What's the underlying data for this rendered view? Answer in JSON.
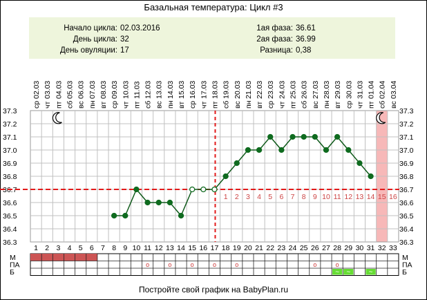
{
  "title": "Базальная температура: Цикл #3",
  "info": {
    "left": [
      {
        "label": "Начало цикла:",
        "value": "02.03.2016"
      },
      {
        "label": "День цикла:",
        "value": "32"
      },
      {
        "label": "День овуляции:",
        "value": "17"
      }
    ],
    "right": [
      {
        "label": "1ая фаза:",
        "value": "36.61"
      },
      {
        "label": "2ая фаза:",
        "value": "36.99"
      },
      {
        "label": "Разница:",
        "value": "0,38"
      }
    ]
  },
  "footer": "Постройте свой график на BabyPlan.ru",
  "colors": {
    "line": "#0f5a1a",
    "marker": "#0f6b1f",
    "coverline": "#e21a1a",
    "ovulation": "#e21a1a",
    "today_column": "#f7b8b8",
    "menstruation": "#cc5555",
    "grid": "#c0c0c0",
    "phase_numbers": "#cc4444",
    "b_mark": "#66dd33",
    "info_bg": "#eef5dc"
  },
  "icons": [
    "moon-icon",
    "moon-icon"
  ],
  "chart_data": {
    "type": "line",
    "dates": [
      "02.03",
      "03.03",
      "04.03",
      "05.03",
      "06.03",
      "07.03",
      "08.03",
      "09.03",
      "10.03",
      "11.03",
      "12.03",
      "13.03",
      "14.03",
      "15.03",
      "16.03",
      "17.03",
      "18.03",
      "19.03",
      "20.03",
      "21.03",
      "22.03",
      "23.03",
      "24.03",
      "25.03",
      "26.03",
      "27.03",
      "28.03",
      "29.03",
      "30.03",
      "31.03",
      "01.04",
      "02.04",
      "03.04"
    ],
    "weekdays": [
      "ср",
      "чт",
      "пт",
      "сб",
      "вс",
      "пн",
      "вт",
      "ср",
      "чт",
      "пт",
      "сб",
      "вс",
      "пн",
      "вт",
      "ср",
      "чт",
      "пт",
      "сб",
      "вс",
      "пн",
      "вт",
      "ср",
      "чт",
      "пт",
      "сб",
      "вс",
      "пн",
      "вт",
      "ср",
      "чт",
      "пт",
      "сб",
      "вс"
    ],
    "days": [
      1,
      2,
      3,
      4,
      5,
      6,
      7,
      8,
      9,
      10,
      11,
      12,
      13,
      14,
      15,
      16,
      17,
      18,
      19,
      20,
      21,
      22,
      23,
      24,
      25,
      26,
      27,
      28,
      29,
      30,
      31,
      32,
      33
    ],
    "temperatures": [
      null,
      null,
      null,
      null,
      null,
      null,
      null,
      36.5,
      36.5,
      36.7,
      36.6,
      36.6,
      36.6,
      36.5,
      36.7,
      36.7,
      36.7,
      36.8,
      36.9,
      37.0,
      37.0,
      37.1,
      37.0,
      37.1,
      37.1,
      37.1,
      37.0,
      37.1,
      37.0,
      36.9,
      36.8,
      null,
      null
    ],
    "open_markers": [
      15,
      16,
      17
    ],
    "yticks": [
      "37.3",
      "37.2",
      "37.1",
      "37.0",
      "36.9",
      "36.8",
      "36.7",
      "36.6",
      "36.5",
      "36.4",
      "36.3"
    ],
    "ylim": [
      36.3,
      37.3
    ],
    "coverline": 36.7,
    "ovulation_day": 17,
    "today_day": 32,
    "moon_days": [
      3,
      32
    ],
    "phase_numbers": [
      "1",
      "2",
      "3",
      "4",
      "5",
      "6",
      "7",
      "8",
      "9",
      "10",
      "11",
      "12",
      "13",
      "14",
      "15",
      "16"
    ],
    "grid": true
  },
  "tracker": {
    "row_labels": [
      "М",
      "ПА",
      "Б"
    ],
    "menstruation_days": [
      1,
      2,
      3,
      4,
      5,
      6
    ],
    "pa_marks": [
      {
        "day": 11,
        "text": "о"
      },
      {
        "day": 13,
        "text": "о"
      },
      {
        "day": 15,
        "text": "о"
      },
      {
        "day": 17,
        "text": "о"
      },
      {
        "day": 19,
        "text": "о"
      },
      {
        "day": 26,
        "text": "о"
      },
      {
        "day": 28,
        "text": "о"
      }
    ],
    "b_marks": [
      {
        "day": 28,
        "text": "~"
      },
      {
        "day": 29,
        "text": "~"
      },
      {
        "day": 31,
        "text": "~"
      }
    ]
  }
}
